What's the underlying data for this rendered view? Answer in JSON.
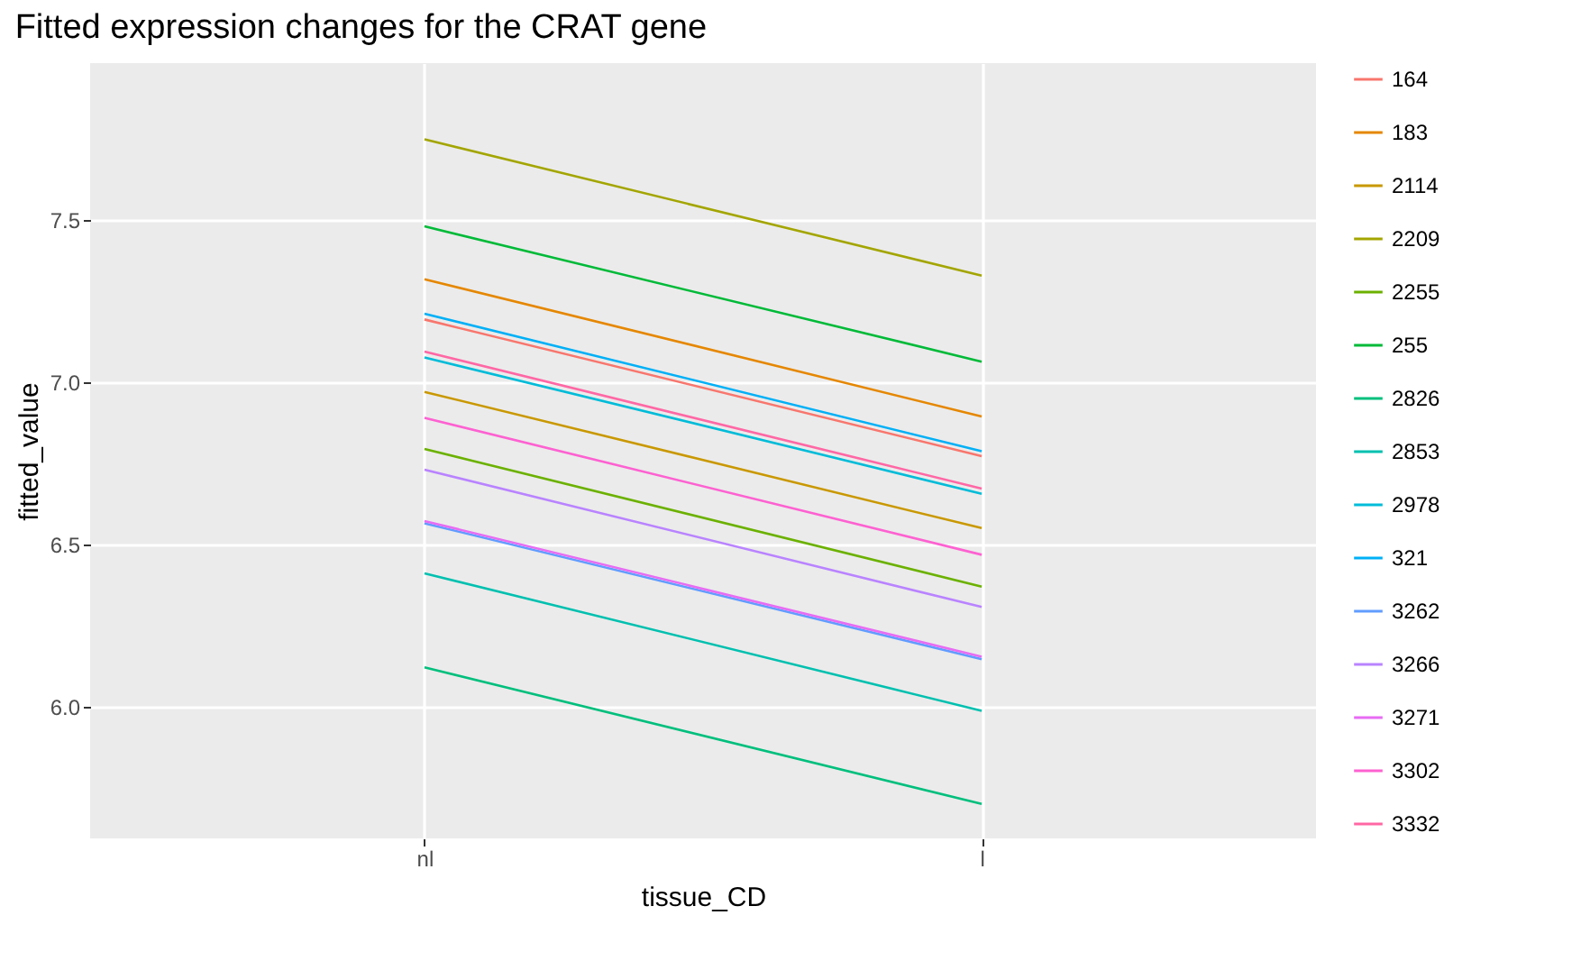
{
  "chart_data": {
    "type": "line",
    "title": "Fitted expression changes for the CRAT gene",
    "xlabel": "tissue_CD",
    "ylabel": "fitted_value",
    "categories": [
      "nl",
      "l"
    ],
    "ylim": [
      5.594,
      7.983
    ],
    "yticks": [
      {
        "value": 6,
        "label": "6.0"
      },
      {
        "value": 6.5,
        "label": "6.5"
      },
      {
        "value": 7,
        "label": "7.0"
      },
      {
        "value": 7.5,
        "label": "7.5"
      }
    ],
    "grid": true,
    "legend": "right",
    "line_style": "solid",
    "marker": "none",
    "series": [
      {
        "name": "164",
        "color": "#f8766d",
        "values": [
          7.193,
          6.772
        ]
      },
      {
        "name": "183",
        "color": "#e58700",
        "values": [
          7.317,
          6.894
        ]
      },
      {
        "name": "2114",
        "color": "#c99800",
        "values": [
          6.97,
          6.55
        ]
      },
      {
        "name": "2209",
        "color": "#a3a500",
        "values": [
          7.748,
          7.328
        ]
      },
      {
        "name": "2255",
        "color": "#6bb100",
        "values": [
          6.794,
          6.37
        ]
      },
      {
        "name": "255",
        "color": "#00ba38",
        "values": [
          7.48,
          7.063
        ]
      },
      {
        "name": "2826",
        "color": "#00bf7d",
        "values": [
          6.121,
          5.7
        ]
      },
      {
        "name": "2853",
        "color": "#00c0af",
        "values": [
          6.411,
          5.987
        ]
      },
      {
        "name": "2978",
        "color": "#00bcd8",
        "values": [
          7.076,
          6.656
        ]
      },
      {
        "name": "321",
        "color": "#00b0f6",
        "values": [
          7.211,
          6.787
        ]
      },
      {
        "name": "3262",
        "color": "#619cff",
        "values": [
          6.565,
          6.146
        ]
      },
      {
        "name": "3266",
        "color": "#b983ff",
        "values": [
          6.73,
          6.307
        ]
      },
      {
        "name": "3271",
        "color": "#e76bf3",
        "values": [
          6.572,
          6.154
        ]
      },
      {
        "name": "3302",
        "color": "#fd61d1",
        "values": [
          6.89,
          6.468
        ]
      },
      {
        "name": "3332",
        "color": "#ff67a4",
        "values": [
          7.094,
          6.672
        ]
      }
    ]
  }
}
